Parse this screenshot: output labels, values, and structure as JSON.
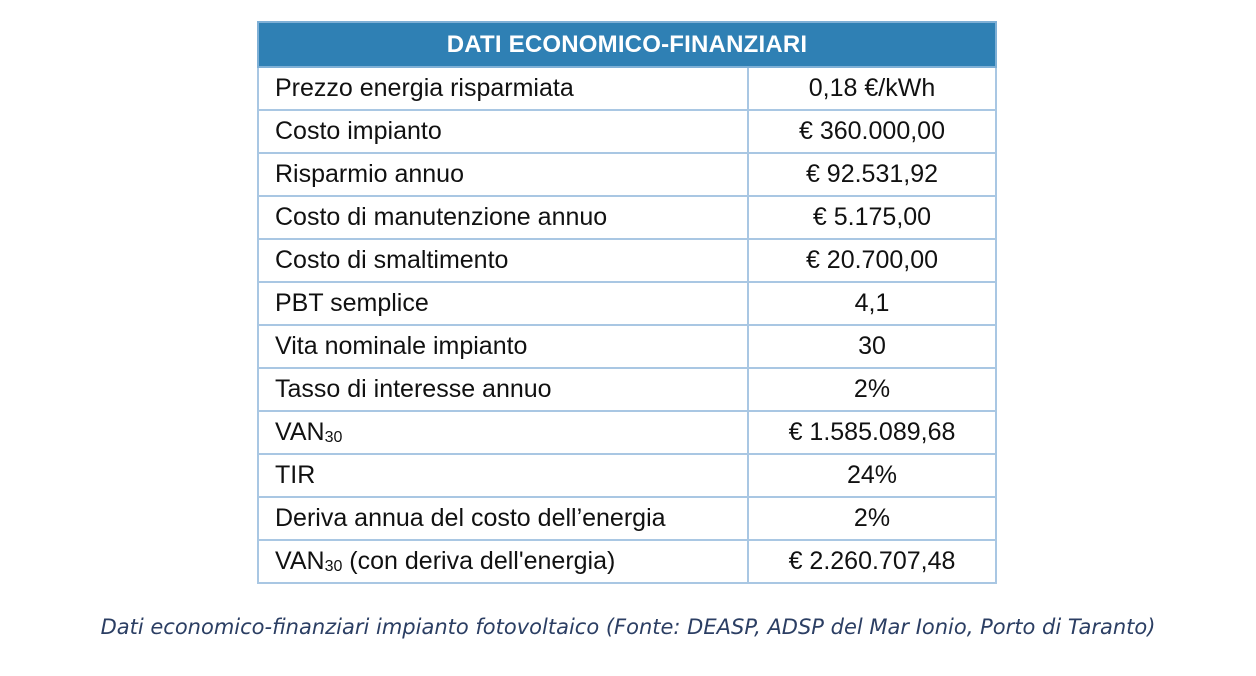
{
  "table": {
    "title": "DATI ECONOMICO-FINANZIARI",
    "rows": [
      {
        "label": "Prezzo energia risparmiata",
        "value": "0,18 €/kWh"
      },
      {
        "label": "Costo impianto",
        "value": "€ 360.000,00"
      },
      {
        "label": "Risparmio annuo",
        "value": "€ 92.531,92"
      },
      {
        "label": "Costo di manutenzione annuo",
        "value": "€ 5.175,00"
      },
      {
        "label": "Costo di smaltimento",
        "value": "€ 20.700,00"
      },
      {
        "label": "PBT semplice",
        "value": "4,1"
      },
      {
        "label": "Vita nominale impianto",
        "value": "30"
      },
      {
        "label": "Tasso di interesse annuo",
        "value": "2%"
      },
      {
        "label": "VAN",
        "label_sub": "30",
        "value": "€ 1.585.089,68"
      },
      {
        "label": "TIR",
        "value": "24%"
      },
      {
        "label": "Deriva annua del costo dell’energia",
        "value": "2%"
      },
      {
        "label": "VAN",
        "label_sub": "30",
        "label_suffix": " (con deriva dell'energia)",
        "value": "€ 2.260.707,48"
      }
    ]
  },
  "caption": "Dati economico-finanziari impianto fotovoltaico (Fonte: DEASP, ADSP del Mar Ionio, Porto di Taranto)"
}
